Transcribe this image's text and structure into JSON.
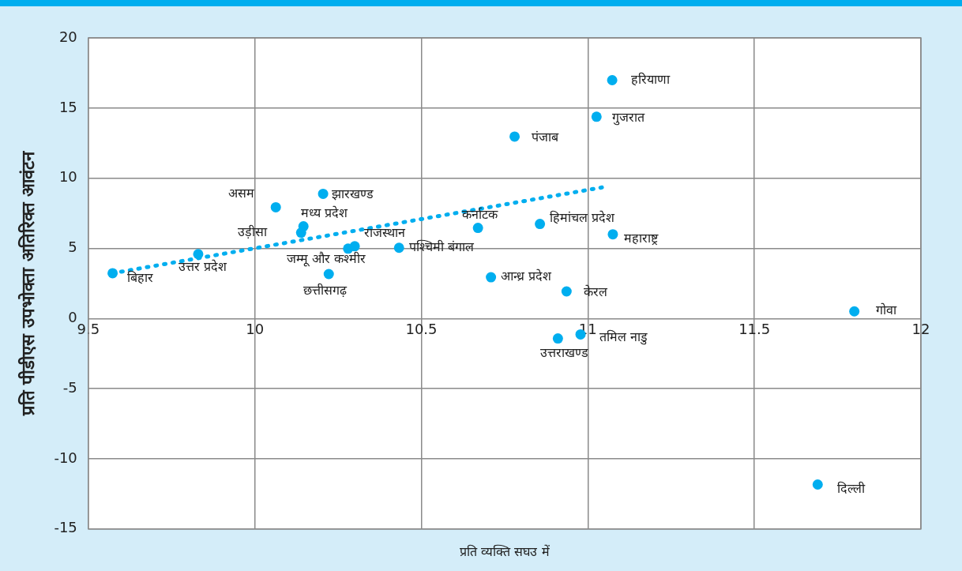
{
  "chart_data": {
    "type": "scatter",
    "xlabel": "प्रति व्यक्ति सघउ में",
    "ylabel": "प्रति पीडीएस उपभोक्ता अतिरिक्त आवंटन",
    "xlim": [
      9.5,
      12
    ],
    "xticks": [
      9.5,
      10,
      10.5,
      11,
      11.5,
      12
    ],
    "ylim": [
      -15,
      20
    ],
    "yticks": [
      -15,
      -10,
      -5,
      0,
      5,
      10,
      15,
      20
    ],
    "grid": true,
    "legend": false,
    "marker": "circle",
    "series": [
      {
        "color": "#00aeef",
        "x": [
          9.573,
          9.83,
          10.063,
          10.146,
          10.139,
          10.205,
          10.28,
          10.3,
          10.222,
          10.433,
          10.67,
          10.709,
          10.78,
          10.856,
          10.936,
          10.91,
          10.978,
          11.026,
          11.073,
          11.075,
          11.8,
          11.69
        ],
        "values": [
          3.23,
          4.59,
          7.93,
          6.57,
          6.12,
          8.89,
          4.98,
          5.15,
          3.17,
          5.04,
          6.46,
          2.94,
          12.97,
          6.74,
          1.93,
          -1.42,
          -1.13,
          14.38,
          16.99,
          6.0,
          0.51,
          -11.83
        ]
      },
      {
        "type": "line",
        "color": "#00aeef",
        "line_style": "dotted",
        "marker": "none",
        "x": [
          9.573,
          11.056
        ],
        "values": [
          3.23,
          9.4
        ]
      }
    ],
    "annotations": [
      {
        "text": "बिहार",
        "x": 9.573,
        "y": 3.23
      },
      {
        "text": "उत्तर प्रदेश",
        "x": 9.83,
        "y": 4.59
      },
      {
        "text": "असम",
        "x": 10.063,
        "y": 7.93
      },
      {
        "text": "मध्य प्रदेश",
        "x": 10.146,
        "y": 6.57
      },
      {
        "text": "उड़ीसा",
        "x": 10.139,
        "y": 6.12
      },
      {
        "text": "झारखण्ड",
        "x": 10.205,
        "y": 8.89
      },
      {
        "text": "जम्मू और कश्मीर",
        "x": 10.28,
        "y": 4.98
      },
      {
        "text": "राजस्थान",
        "x": 10.3,
        "y": 5.15
      },
      {
        "text": "छत्तीसगढ़",
        "x": 10.222,
        "y": 3.17
      },
      {
        "text": "पश्चिमी बंगाल",
        "x": 10.433,
        "y": 5.04
      },
      {
        "text": "कर्नाटक",
        "x": 10.67,
        "y": 6.46
      },
      {
        "text": "आन्ध्र प्रदेश",
        "x": 10.709,
        "y": 2.94
      },
      {
        "text": "पंजाब",
        "x": 10.78,
        "y": 12.97
      },
      {
        "text": "हिमांचल प्रदेश",
        "x": 10.856,
        "y": 6.74
      },
      {
        "text": "केरल",
        "x": 10.936,
        "y": 1.93
      },
      {
        "text": "उत्तराखण्ड",
        "x": 10.91,
        "y": -1.42
      },
      {
        "text": "तमिल नाडु",
        "x": 10.978,
        "y": -1.13
      },
      {
        "text": "गुजरात",
        "x": 11.026,
        "y": 14.38
      },
      {
        "text": "हरियाणा",
        "x": 11.073,
        "y": 16.99
      },
      {
        "text": "महाराष्ट्र",
        "x": 11.075,
        "y": 6.0
      },
      {
        "text": "गोवा",
        "x": 11.8,
        "y": 0.51
      },
      {
        "text": "दिल्ली",
        "x": 11.69,
        "y": -11.83
      }
    ]
  }
}
